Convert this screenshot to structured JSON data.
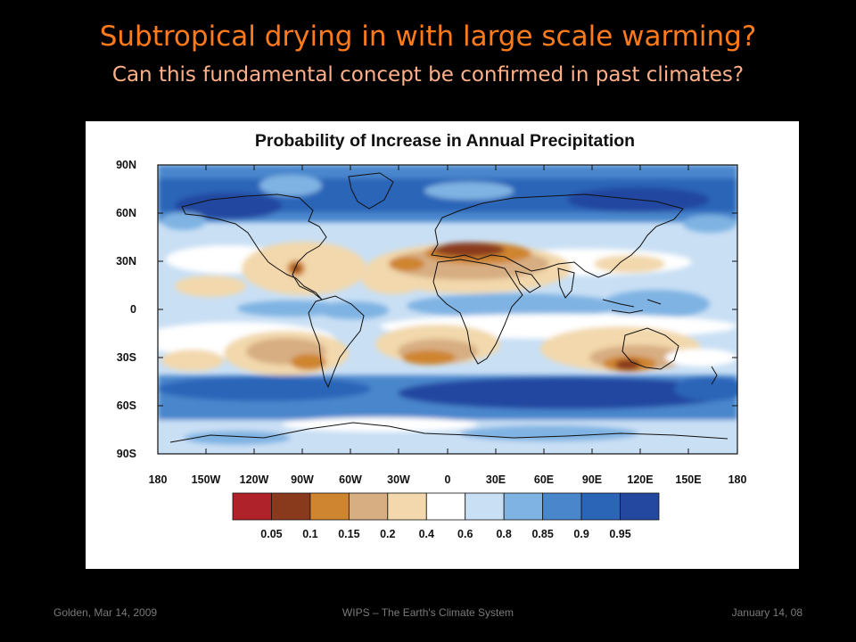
{
  "slide": {
    "title": "Subtropical drying in with large scale warming?",
    "subtitle": "Can this fundamental concept be confirmed in past climates?"
  },
  "figure": {
    "title": "Probability of Increase in Annual Precipitation",
    "lat_labels": [
      "90N",
      "60N",
      "30N",
      "0",
      "30S",
      "60S",
      "90S"
    ],
    "lon_labels": [
      "180",
      "150W",
      "120W",
      "90W",
      "60W",
      "30W",
      "0",
      "30E",
      "60E",
      "90E",
      "120E",
      "150E",
      "180"
    ],
    "colorbar": {
      "colors": [
        "#b0222a",
        "#8a3a1c",
        "#cf842f",
        "#d7ad82",
        "#f2d8ac",
        "#ffffff",
        "#c9dff4",
        "#7fb3e3",
        "#4a86cc",
        "#2b65b8",
        "#2447a0"
      ],
      "labels": [
        "0.05",
        "0.1",
        "0.15",
        "0.2",
        "0.4",
        "0.6",
        "0.8",
        "0.85",
        "0.9",
        "0.95"
      ]
    }
  },
  "footer": {
    "left": "Golden, Mar 14, 2009",
    "center": "WIPS – The Earth's Climate System",
    "right": "January 14, 08"
  }
}
